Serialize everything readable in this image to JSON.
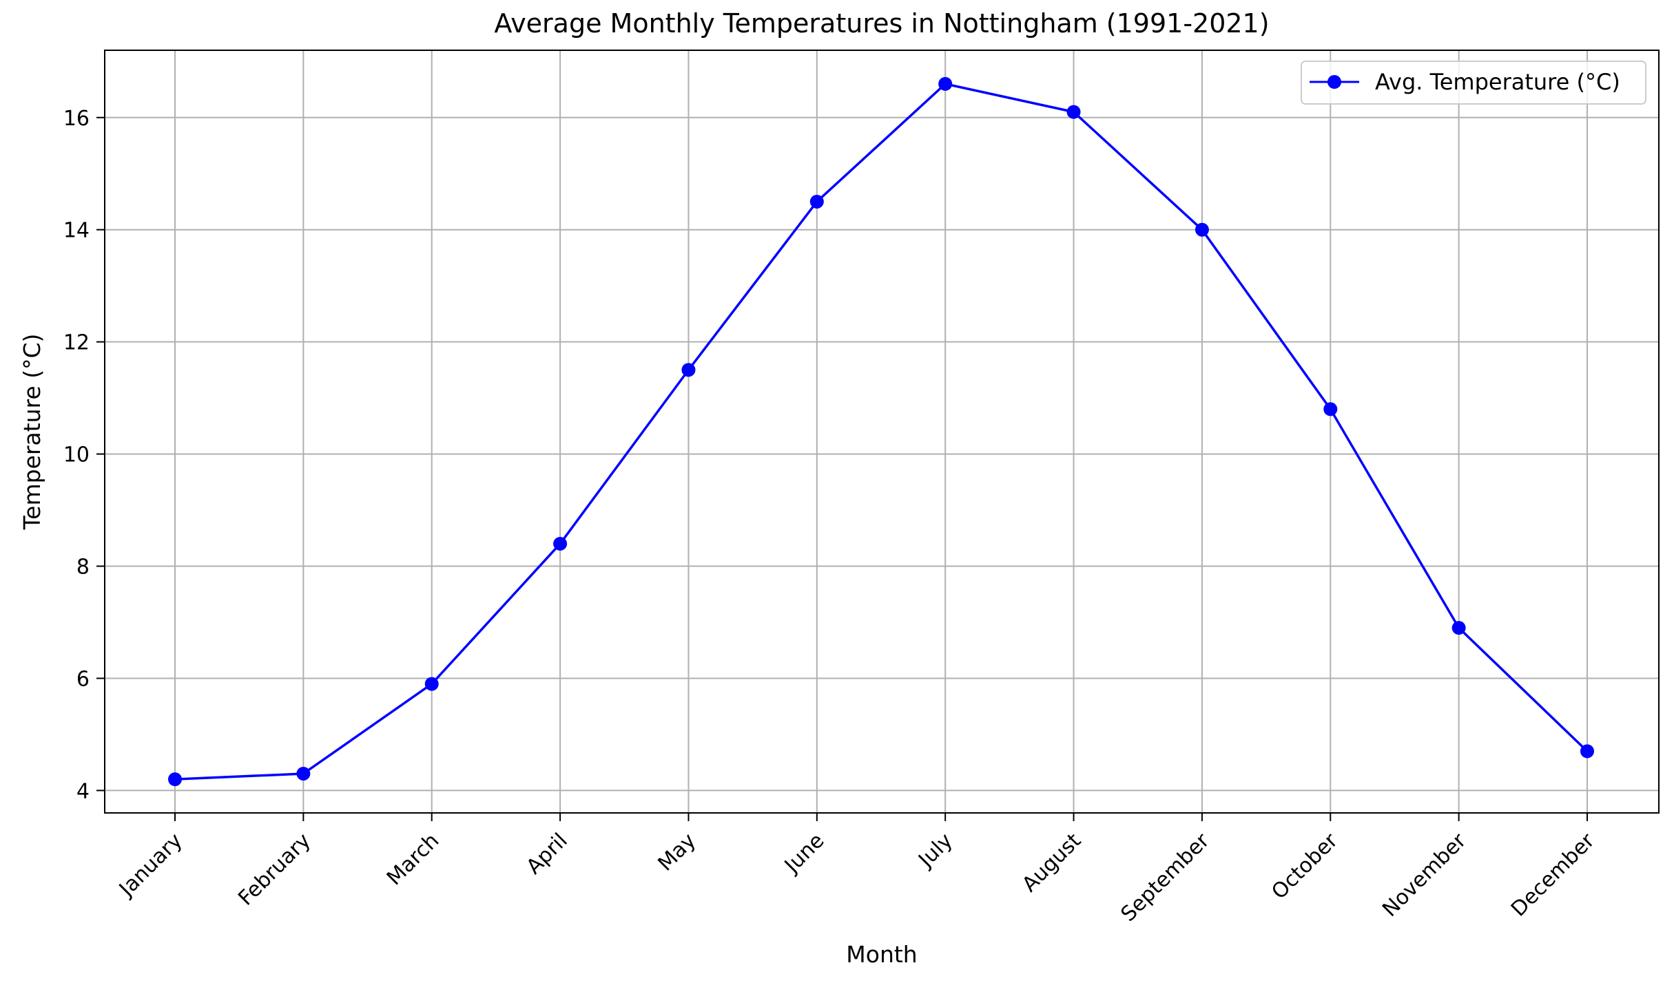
{
  "chart_data": {
    "type": "line",
    "title": "Average Monthly Temperatures in Nottingham (1991-2021)",
    "xlabel": "Month",
    "ylabel": "Temperature (°C)",
    "categories": [
      "January",
      "February",
      "March",
      "April",
      "May",
      "June",
      "July",
      "August",
      "September",
      "October",
      "November",
      "December"
    ],
    "series": [
      {
        "name": "Avg. Temperature (°C)",
        "values": [
          4.2,
          4.3,
          5.9,
          8.4,
          11.5,
          14.5,
          16.6,
          16.1,
          14.0,
          10.8,
          6.9,
          4.7
        ],
        "color": "#0000ff",
        "marker": "circle"
      }
    ],
    "ylim": [
      3.6,
      17.2
    ],
    "yticks": [
      4,
      6,
      8,
      10,
      12,
      14,
      16
    ],
    "ytick_labels": [
      "4",
      "6",
      "8",
      "10",
      "12",
      "14",
      "16"
    ],
    "grid": true,
    "legend_position": "top-right"
  }
}
